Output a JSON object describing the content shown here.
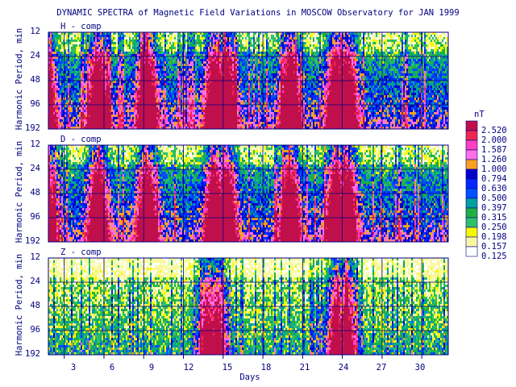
{
  "chart_data": {
    "type": "heatmap",
    "title": "DYNAMIC SPECTRA of Magnetic Field Variations in MOSCOW Observatory for JAN 1999",
    "xlabel": "Days",
    "ylabel": "Harmonic Period, min",
    "x_ticks": [
      "3",
      "6",
      "9",
      "12",
      "15",
      "18",
      "21",
      "24",
      "27",
      "30"
    ],
    "x_tick_values": [
      3,
      6,
      9,
      12,
      15,
      18,
      21,
      24,
      27,
      30
    ],
    "x_range": [
      1.8,
      32.0
    ],
    "y_ticks": [
      "12",
      "24",
      "48",
      "96",
      "192"
    ],
    "y_scale": "log2",
    "y_range": [
      12,
      192
    ],
    "grid": true,
    "legend": {
      "title": "nT",
      "position": "right",
      "levels": [
        "2.520",
        "2.000",
        "1.587",
        "1.260",
        "1.000",
        "0.794",
        "0.630",
        "0.500",
        "0.397",
        "0.315",
        "0.250",
        "0.198",
        "0.157",
        "0.125"
      ],
      "colors": [
        "#c0104c",
        "#f02850",
        "#ff40c0",
        "#ff70e8",
        "#f8a020",
        "#0000c8",
        "#0028ff",
        "#0050ff",
        "#00a0a0",
        "#20b040",
        "#30c068",
        "#f8f800",
        "#f8f8a0",
        "#ffffff"
      ]
    },
    "panels": [
      {
        "name": "H - comp",
        "activity_days": [
          1.5,
          5.5,
          9.2,
          14.3,
          15.2,
          20.0,
          23.5,
          24.3
        ],
        "base_level": "moderate"
      },
      {
        "name": "D - comp",
        "activity_days": [
          1.5,
          5.5,
          9.2,
          14.3,
          15.2,
          20.0,
          23.5,
          24.3
        ],
        "base_level": "moderate"
      },
      {
        "name": "Z - comp",
        "activity_days": [
          13.8,
          14.5,
          23.5,
          24.3
        ],
        "base_level": "low"
      }
    ]
  }
}
